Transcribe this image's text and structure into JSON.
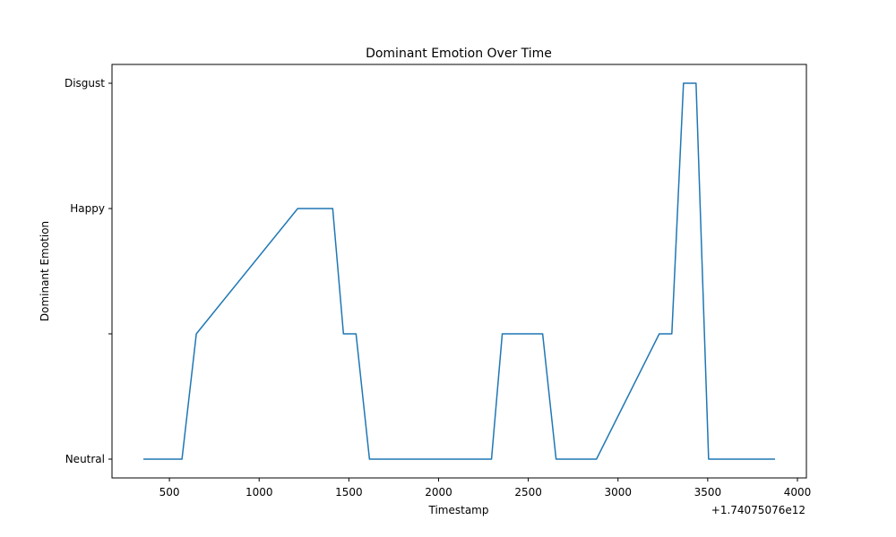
{
  "chart_data": {
    "type": "line",
    "title": "Dominant Emotion Over Time",
    "xlabel": "Timestamp",
    "ylabel": "Dominant Emotion",
    "x_offset_label": "+1.74075076e12",
    "xlim": [
      180,
      4050
    ],
    "ylim": [
      -0.15,
      3.15
    ],
    "xticks": [
      500,
      1000,
      1500,
      2000,
      2500,
      3000,
      3500,
      4000
    ],
    "yticks": [
      {
        "value": 0,
        "label": "Neutral"
      },
      {
        "value": 1,
        "label": ""
      },
      {
        "value": 2,
        "label": "Happy"
      },
      {
        "value": 3,
        "label": "Disgust"
      }
    ],
    "grid": false,
    "series": [
      {
        "color": "#1f77b4",
        "points": [
          [
            355,
            0
          ],
          [
            570,
            0
          ],
          [
            650,
            1
          ],
          [
            1215,
            2
          ],
          [
            1410,
            2
          ],
          [
            1470,
            1
          ],
          [
            1540,
            1
          ],
          [
            1615,
            0
          ],
          [
            2295,
            0
          ],
          [
            2355,
            1
          ],
          [
            2580,
            1
          ],
          [
            2655,
            0
          ],
          [
            2880,
            0
          ],
          [
            3230,
            1
          ],
          [
            3300,
            1
          ],
          [
            3365,
            3
          ],
          [
            3435,
            3
          ],
          [
            3505,
            0
          ],
          [
            3875,
            0
          ]
        ]
      }
    ]
  }
}
